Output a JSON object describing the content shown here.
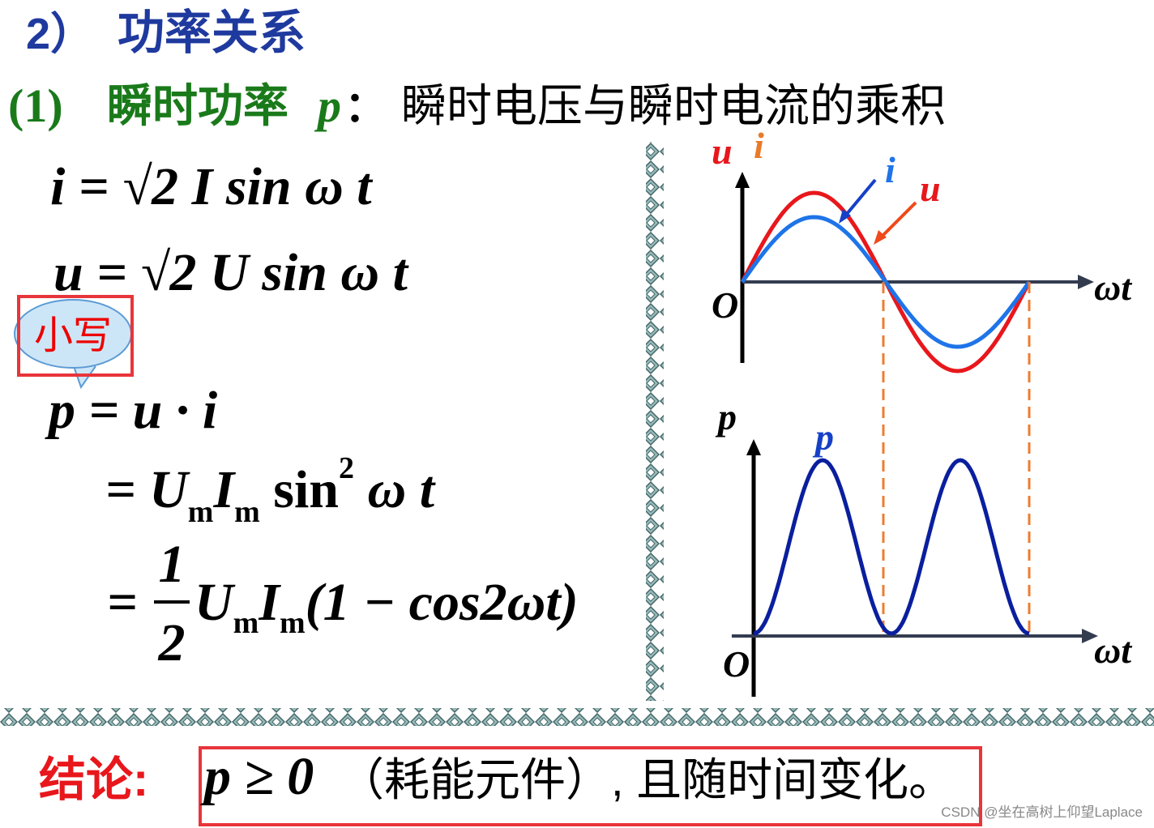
{
  "heading": {
    "number": "2）",
    "title": "功率关系"
  },
  "definition": {
    "number": "(1)",
    "term": "瞬时功率",
    "symbol": "p",
    "colon": "：",
    "text": "瞬时电压与瞬时电流的乘积"
  },
  "formulas": {
    "current": "i = √2 I sin ω t",
    "voltage": "u = √2 U sin ω t",
    "power": "p = u · i",
    "expansion": [
      "= U",
      "m",
      "I",
      "m",
      " sin",
      "2",
      " ω t"
    ],
    "identity": [
      "=",
      "1",
      "2",
      "U",
      "m",
      "I",
      "m",
      "(1 − cos2ωt)"
    ]
  },
  "callout": "小写",
  "top_graph": {
    "y_label_u": "u",
    "y_label_i": "i",
    "curve_i": "i",
    "curve_u": "u",
    "x_label": "ωt",
    "origin": "O"
  },
  "bottom_graph": {
    "y_label": "p",
    "curve_p": "p",
    "x_label": "ωt",
    "origin": "O"
  },
  "conclusion": {
    "label": "结论:",
    "expression": "p ≥ 0",
    "text": "（耗能元件）, 且随时间变化。"
  },
  "watermark": "CSDN @坐在高树上仰望Laplace"
}
